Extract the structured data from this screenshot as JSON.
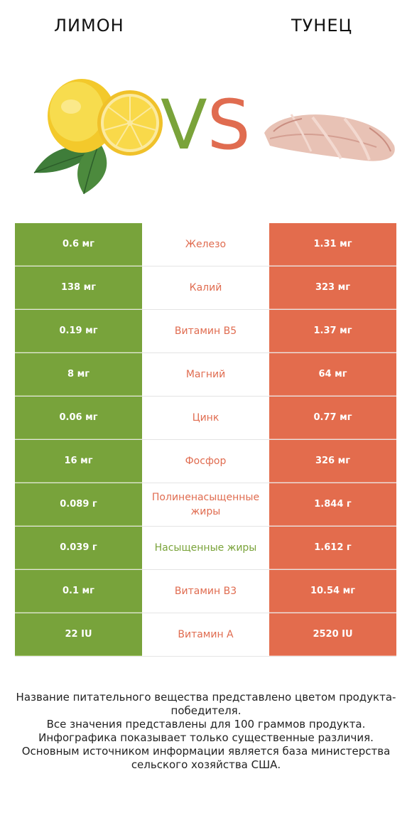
{
  "header": {
    "left_title": "ЛИМОН",
    "right_title": "ТУНЕЦ",
    "vs_v": "V",
    "vs_s": "S"
  },
  "colors": {
    "left_accent": "#78a33b",
    "right_accent": "#e36c4d"
  },
  "rows": [
    {
      "left": "0.6 мг",
      "name": "Железо",
      "right": "1.31 мг",
      "winner": "right"
    },
    {
      "left": "138 мг",
      "name": "Калий",
      "right": "323 мг",
      "winner": "right"
    },
    {
      "left": "0.19 мг",
      "name": "Витамин B5",
      "right": "1.37 мг",
      "winner": "right"
    },
    {
      "left": "8 мг",
      "name": "Магний",
      "right": "64 мг",
      "winner": "right"
    },
    {
      "left": "0.06 мг",
      "name": "Цинк",
      "right": "0.77 мг",
      "winner": "right"
    },
    {
      "left": "16 мг",
      "name": "Фосфор",
      "right": "326 мг",
      "winner": "right"
    },
    {
      "left": "0.089 г",
      "name": "Полиненасыщенные жиры",
      "right": "1.844 г",
      "winner": "right"
    },
    {
      "left": "0.039 г",
      "name": "Насыщенные жиры",
      "right": "1.612 г",
      "winner": "left"
    },
    {
      "left": "0.1 мг",
      "name": "Витамин B3",
      "right": "10.54 мг",
      "winner": "right"
    },
    {
      "left": "22 IU",
      "name": "Витамин A",
      "right": "2520 IU",
      "winner": "right"
    }
  ],
  "footer": {
    "line1": "Название питательного вещества представлено цветом продукта-победителя.",
    "line2": "Все значения представлены для 100 граммов продукта.",
    "line3": "Инфографика показывает только существенные различия.",
    "line4": "Основным источником информации является база министерства сельского хозяйства США."
  }
}
